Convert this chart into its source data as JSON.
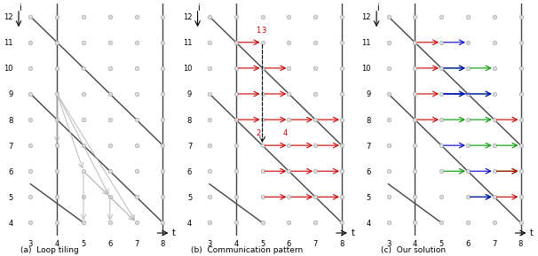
{
  "t_min": 3,
  "t_max": 8,
  "i_min": 4,
  "i_max": 12,
  "t_ticks": [
    3,
    4,
    5,
    6,
    7,
    8
  ],
  "i_ticks": [
    4,
    5,
    6,
    7,
    8,
    9,
    10,
    11,
    12
  ],
  "vline_positions": [
    4,
    8
  ],
  "diagonal_lines": [
    [
      [
        3,
        12
      ],
      [
        8,
        7
      ]
    ],
    [
      [
        3,
        9
      ],
      [
        8,
        4
      ]
    ],
    [
      [
        3,
        5.5
      ],
      [
        5,
        4
      ]
    ]
  ],
  "gray_arrows_a": [
    [
      4,
      9,
      4,
      7
    ],
    [
      4,
      9,
      5,
      6
    ],
    [
      4,
      9,
      6,
      5
    ],
    [
      4,
      9,
      7,
      4
    ],
    [
      5,
      6,
      5,
      4
    ],
    [
      5,
      6,
      6,
      5
    ],
    [
      5,
      6,
      7,
      4
    ],
    [
      6,
      5,
      6,
      4
    ],
    [
      6,
      5,
      7,
      4
    ]
  ],
  "red_arrows_b": [
    [
      4,
      11,
      5,
      11
    ],
    [
      4,
      10,
      5,
      10
    ],
    [
      5,
      10,
      6,
      10
    ],
    [
      4,
      9,
      5,
      9
    ],
    [
      5,
      9,
      6,
      9
    ],
    [
      4,
      8,
      5,
      8
    ],
    [
      5,
      8,
      6,
      8
    ],
    [
      6,
      8,
      7,
      8
    ],
    [
      7,
      8,
      8,
      8
    ],
    [
      5,
      7,
      6,
      7
    ],
    [
      6,
      7,
      7,
      7
    ],
    [
      7,
      7,
      8,
      7
    ],
    [
      5,
      6,
      6,
      6
    ],
    [
      6,
      6,
      7,
      6
    ],
    [
      7,
      6,
      8,
      6
    ],
    [
      5,
      5,
      6,
      5
    ],
    [
      6,
      5,
      7,
      5
    ],
    [
      7,
      5,
      8,
      5
    ]
  ],
  "dashed_arrow_b": [
    5,
    11,
    5,
    7
  ],
  "numbers_b": [
    [
      4.85,
      11.3,
      "1"
    ],
    [
      5.05,
      11.3,
      "3"
    ],
    [
      4.85,
      7.3,
      "2"
    ],
    [
      5.85,
      7.3,
      "4"
    ]
  ],
  "red_arrows_c": [
    [
      4,
      11,
      5,
      11
    ],
    [
      4,
      10,
      5,
      10
    ],
    [
      4,
      9,
      5,
      9
    ],
    [
      4,
      8,
      5,
      8
    ],
    [
      7,
      8,
      8,
      8
    ],
    [
      7,
      6,
      8,
      6
    ],
    [
      7,
      5,
      8,
      5
    ]
  ],
  "blue_arrows_c": [
    [
      5,
      11,
      6,
      11
    ],
    [
      5,
      10,
      6,
      10
    ],
    [
      5,
      9,
      6,
      9
    ],
    [
      5,
      9,
      7,
      9
    ],
    [
      5,
      7,
      6,
      7
    ],
    [
      6,
      6,
      7,
      6
    ],
    [
      6,
      5,
      7,
      5
    ]
  ],
  "green_arrows_c": [
    [
      5,
      10,
      6,
      10
    ],
    [
      6,
      10,
      7,
      10
    ],
    [
      5,
      9,
      6,
      9
    ],
    [
      6,
      9,
      7,
      9
    ],
    [
      5,
      8,
      6,
      8
    ],
    [
      6,
      8,
      7,
      8
    ],
    [
      6,
      7,
      7,
      7
    ],
    [
      7,
      7,
      8,
      7
    ],
    [
      5,
      6,
      6,
      6
    ],
    [
      7,
      6,
      8,
      6
    ],
    [
      6,
      5,
      7,
      5
    ]
  ],
  "dot_color": "#999999",
  "dot_size": 8,
  "arrow_color_gray": "#bbbbbb",
  "arrow_color_red": "#cc0000",
  "arrow_color_blue": "#0000cc",
  "arrow_color_green": "#009900",
  "vline_color": "#444444",
  "diag_color": "#444444",
  "caption_a": "(a)  Loop tiling",
  "caption_b": "(b)  Communication pattern",
  "caption_c": "(c)  Our solution",
  "title": "i"
}
